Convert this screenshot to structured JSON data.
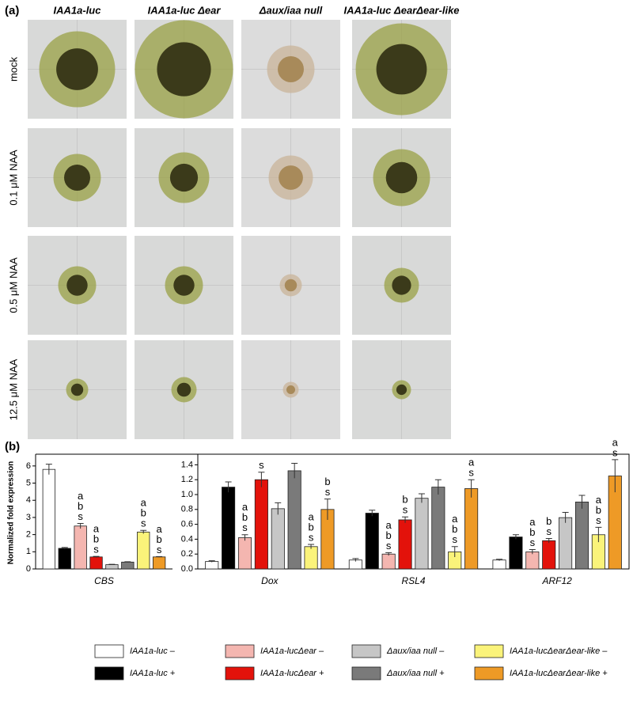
{
  "panel_a": {
    "label": "(a)",
    "columns": [
      "IAA1a-luc",
      "IAA1a-luc Δear",
      "Δaux/iaa null",
      "IAA1a-luc ΔearΔear-like"
    ],
    "rows": [
      "mock",
      "0.1 μM NAA",
      "0.5 μM NAA",
      "12.5 μM NAA"
    ]
  },
  "panel_b": {
    "label": "(b)"
  },
  "chart_data": {
    "type": "bar",
    "ylabel": "Normalized fold expression",
    "categories": [
      "CBS",
      "Dox",
      "RSL4",
      "ARF12"
    ],
    "category_axes": [
      "y",
      "y2",
      "y2",
      "y2"
    ],
    "ylim": [
      0,
      6.5
    ],
    "yticks": [
      0,
      1,
      2,
      3,
      4,
      5,
      6
    ],
    "y2lim": [
      0,
      1.5
    ],
    "y2ticks": [
      0.0,
      0.2,
      0.4,
      0.6,
      0.8,
      1.0,
      1.2,
      1.4
    ],
    "series": [
      {
        "name": "IAA1a-luc –",
        "color": "#ffffff",
        "values": [
          5.8,
          0.1,
          0.12,
          0.12
        ],
        "errors": [
          0.3,
          0.01,
          0.02,
          0.01
        ],
        "letters": [
          null,
          null,
          null,
          null
        ]
      },
      {
        "name": "IAA1a-luc +",
        "color": "#000000",
        "values": [
          1.2,
          1.1,
          0.75,
          0.43
        ],
        "errors": [
          0.05,
          0.07,
          0.04,
          0.03
        ],
        "letters": [
          null,
          null,
          null,
          null
        ]
      },
      {
        "name": "IAA1a-lucΔear –",
        "color": "#f4b6b0",
        "values": [
          2.5,
          0.42,
          0.2,
          0.23
        ],
        "errors": [
          0.15,
          0.04,
          0.02,
          0.03
        ],
        "letters": [
          [
            "a",
            "b",
            "s"
          ],
          [
            "a",
            "b",
            "s"
          ],
          [
            "a",
            "b",
            "s"
          ],
          [
            "a",
            "b",
            "s"
          ]
        ]
      },
      {
        "name": "IAA1a-lucΔear +",
        "color": "#e3120b",
        "values": [
          0.7,
          1.2,
          0.66,
          0.38
        ],
        "errors": [
          0.03,
          0.1,
          0.04,
          0.03
        ],
        "letters": [
          [
            "a",
            "b",
            "s"
          ],
          [
            "s"
          ],
          [
            "b",
            "s"
          ],
          [
            "b",
            "s"
          ]
        ]
      },
      {
        "name": "Δaux/iaa null –",
        "color": "#c6c6c6",
        "values": [
          0.25,
          0.81,
          0.95,
          0.69
        ],
        "errors": [
          0.02,
          0.08,
          0.06,
          0.07
        ],
        "letters": [
          null,
          null,
          null,
          null
        ]
      },
      {
        "name": "Δaux/iaa null +",
        "color": "#7a7a7a",
        "values": [
          0.4,
          1.32,
          1.1,
          0.9
        ],
        "errors": [
          0.02,
          0.1,
          0.1,
          0.09
        ],
        "letters": [
          null,
          null,
          null,
          null
        ]
      },
      {
        "name": "IAA1a-lucΔearΔear-like –",
        "color": "#faf37a",
        "values": [
          2.15,
          0.3,
          0.23,
          0.46
        ],
        "errors": [
          0.1,
          0.03,
          0.07,
          0.1
        ],
        "letters": [
          [
            "a",
            "b",
            "s"
          ],
          [
            "a",
            "b",
            "s"
          ],
          [
            "a",
            "b",
            "s"
          ],
          [
            "a",
            "b",
            "s"
          ]
        ]
      },
      {
        "name": "IAA1a-lucΔearΔear-like +",
        "color": "#ee9a26",
        "values": [
          0.7,
          0.8,
          1.08,
          1.25
        ],
        "errors": [
          0.02,
          0.14,
          0.12,
          0.22
        ],
        "letters": [
          [
            "a",
            "b",
            "s"
          ],
          [
            "b",
            "s"
          ],
          [
            "a",
            "s"
          ],
          [
            "a",
            "s"
          ]
        ]
      }
    ]
  }
}
